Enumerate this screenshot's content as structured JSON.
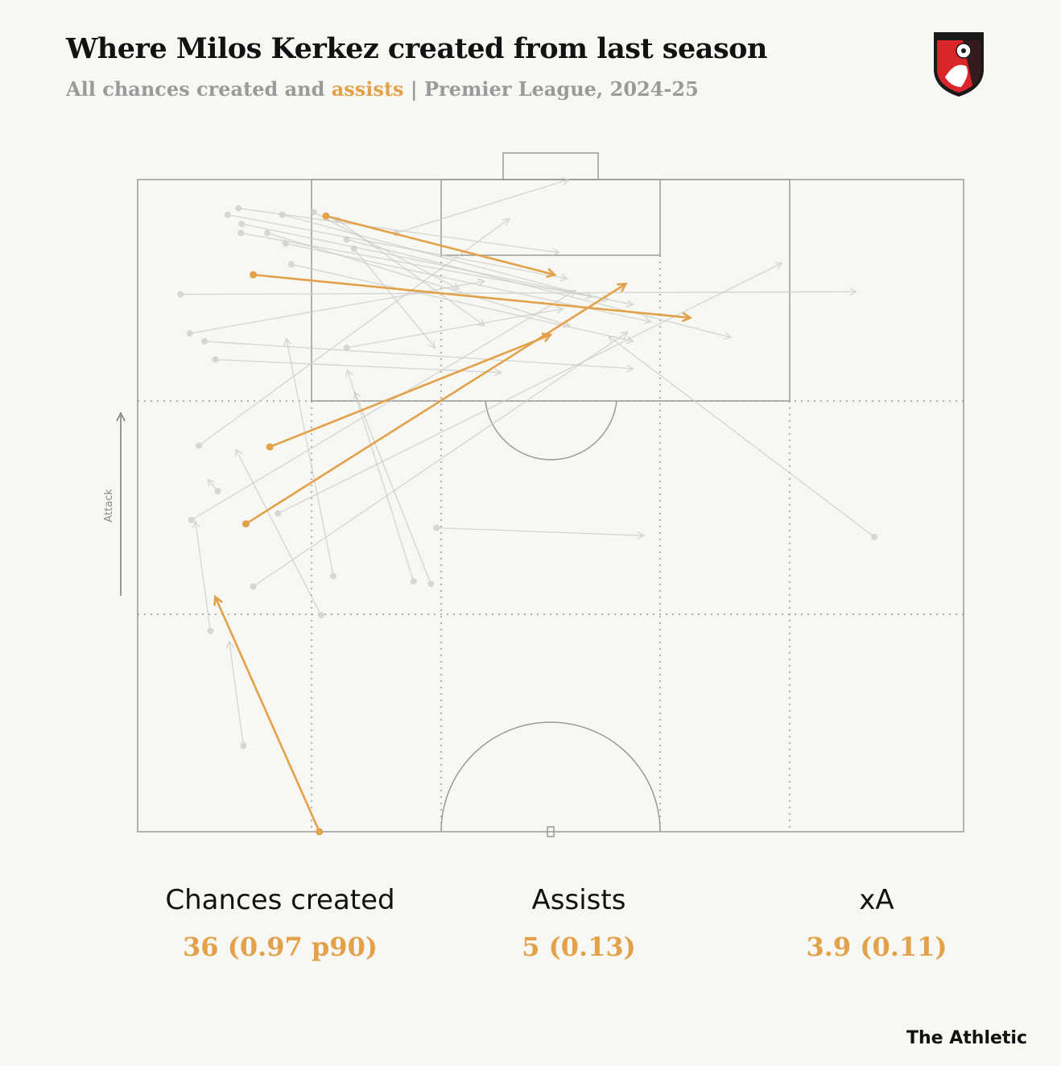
{
  "header": {
    "title": "Where Milos Kerkez created from last season",
    "subtitle_pre": "All chances created and ",
    "subtitle_hl": "assists",
    "subtitle_post": " | Premier League, 2024-25"
  },
  "crest": {
    "text": "AFC BOURNEMOUTH"
  },
  "pitch": {
    "direction_label": "Attack"
  },
  "colors": {
    "assist": "#e3a14a",
    "chance": "#cbcbcb",
    "lines": "#9a9a9a",
    "background": "#f7f7f3"
  },
  "chart_data": {
    "type": "pass-map",
    "units": "pitch coordinates: x 0-100 across the width (left touchline to right), y 0-50 from halfway line (0) to goal line (50)",
    "legend": [
      "chances created",
      "assists"
    ],
    "passes": [
      {
        "x1": 22.8,
        "y1": 47.2,
        "x2": 50.5,
        "y2": 42.7,
        "assist": true
      },
      {
        "x1": 14.0,
        "y1": 42.7,
        "x2": 66.9,
        "y2": 39.4,
        "assist": true
      },
      {
        "x1": 16.0,
        "y1": 29.5,
        "x2": 50.0,
        "y2": 38.1,
        "assist": true
      },
      {
        "x1": 13.1,
        "y1": 23.6,
        "x2": 59.1,
        "y2": 42.0,
        "assist": true
      },
      {
        "x1": 22.0,
        "y1": 0.0,
        "x2": 9.4,
        "y2": 18.0,
        "assist": true
      },
      {
        "x1": 12.2,
        "y1": 47.8,
        "x2": 51.0,
        "y2": 44.4,
        "assist": false
      },
      {
        "x1": 10.9,
        "y1": 47.3,
        "x2": 52.0,
        "y2": 42.4,
        "assist": false
      },
      {
        "x1": 17.5,
        "y1": 47.3,
        "x2": 55.0,
        "y2": 41.0,
        "assist": false
      },
      {
        "x1": 12.6,
        "y1": 46.6,
        "x2": 60.0,
        "y2": 40.4,
        "assist": false
      },
      {
        "x1": 12.5,
        "y1": 45.9,
        "x2": 57.0,
        "y2": 40.8,
        "assist": false
      },
      {
        "x1": 15.7,
        "y1": 45.9,
        "x2": 52.3,
        "y2": 38.8,
        "assist": false
      },
      {
        "x1": 21.3,
        "y1": 47.5,
        "x2": 38.9,
        "y2": 41.6,
        "assist": false
      },
      {
        "x1": 24.2,
        "y1": 46.9,
        "x2": 42.0,
        "y2": 38.8,
        "assist": false
      },
      {
        "x1": 25.3,
        "y1": 45.4,
        "x2": 71.8,
        "y2": 37.9,
        "assist": false
      },
      {
        "x1": 17.9,
        "y1": 45.1,
        "x2": 62.1,
        "y2": 39.1,
        "assist": false
      },
      {
        "x1": 18.6,
        "y1": 43.5,
        "x2": 60.0,
        "y2": 37.6,
        "assist": false
      },
      {
        "x1": 25.3,
        "y1": 37.1,
        "x2": 51.5,
        "y2": 40.1,
        "assist": false
      },
      {
        "x1": 26.2,
        "y1": 44.7,
        "x2": 36.0,
        "y2": 37.1,
        "assist": false
      },
      {
        "x1": 31.3,
        "y1": 45.9,
        "x2": 52.2,
        "y2": 50.0,
        "assist": false
      },
      {
        "x1": 5.2,
        "y1": 41.2,
        "x2": 87.0,
        "y2": 41.4,
        "assist": false
      },
      {
        "x1": 6.3,
        "y1": 38.2,
        "x2": 42.0,
        "y2": 42.2,
        "assist": false
      },
      {
        "x1": 8.1,
        "y1": 37.6,
        "x2": 60.0,
        "y2": 35.5,
        "assist": false
      },
      {
        "x1": 9.4,
        "y1": 36.2,
        "x2": 44.0,
        "y2": 35.2,
        "assist": false
      },
      {
        "x1": 89.2,
        "y1": 22.6,
        "x2": 57.0,
        "y2": 38.0,
        "assist": false
      },
      {
        "x1": 36.2,
        "y1": 23.3,
        "x2": 61.3,
        "y2": 22.7,
        "assist": false
      },
      {
        "x1": 7.4,
        "y1": 29.6,
        "x2": 45.0,
        "y2": 47.0,
        "assist": false
      },
      {
        "x1": 17.0,
        "y1": 24.4,
        "x2": 78.0,
        "y2": 43.6,
        "assist": false
      },
      {
        "x1": 23.7,
        "y1": 19.6,
        "x2": 18.0,
        "y2": 37.8,
        "assist": false
      },
      {
        "x1": 33.4,
        "y1": 19.2,
        "x2": 25.4,
        "y2": 35.4,
        "assist": false
      },
      {
        "x1": 35.5,
        "y1": 19.0,
        "x2": 26.3,
        "y2": 33.7,
        "assist": false
      },
      {
        "x1": 9.7,
        "y1": 26.1,
        "x2": 8.5,
        "y2": 27.0,
        "assist": false
      },
      {
        "x1": 6.5,
        "y1": 23.9,
        "x2": 53.0,
        "y2": 41.5,
        "assist": false
      },
      {
        "x1": 14.0,
        "y1": 18.8,
        "x2": 59.3,
        "y2": 38.3,
        "assist": false
      },
      {
        "x1": 22.2,
        "y1": 16.6,
        "x2": 11.9,
        "y2": 29.3,
        "assist": false
      },
      {
        "x1": 8.8,
        "y1": 15.4,
        "x2": 7.0,
        "y2": 23.8,
        "assist": false
      },
      {
        "x1": 12.8,
        "y1": 6.6,
        "x2": 11.1,
        "y2": 14.6,
        "assist": false
      }
    ]
  },
  "stats": [
    {
      "label": "Chances created",
      "value": "36 (0.97 p90)"
    },
    {
      "label": "Assists",
      "value": "5 (0.13)"
    },
    {
      "label": "xA",
      "value": "3.9 (0.11)"
    }
  ],
  "brand": "The Athletic"
}
